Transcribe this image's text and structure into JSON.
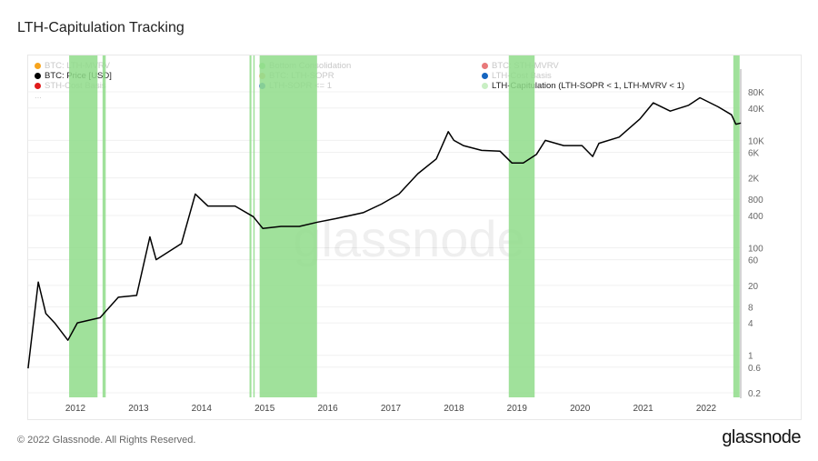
{
  "title": "LTH-Capitulation Tracking",
  "legend": [
    {
      "label": "BTC: LTH-MVRV",
      "color": "#f7a41d",
      "active": false
    },
    {
      "label": "Bottom Consolidation",
      "color": "#a8e6a0",
      "active": false
    },
    {
      "label": "BTC: STH-MVRV",
      "color": "#e8797a",
      "active": false
    },
    {
      "label": "BTC: Price [USD]",
      "color": "#000000",
      "active": true
    },
    {
      "label": "BTC: LTH-SOPR",
      "color": "#f2c38a",
      "active": false
    },
    {
      "label": "LTH-Cost Basis",
      "color": "#1565c0",
      "active": false
    },
    {
      "label": "STH-Cost Basis",
      "color": "#e01b1b",
      "active": false
    },
    {
      "label": "LTH-SOPR <= 1",
      "color": "#4f7de0",
      "active": false
    },
    {
      "label": "LTH-Capitulation (LTH-SOPR < 1, LTH-MVRV < 1)",
      "color": "#c9efc4",
      "active": true
    },
    {
      "label": "...",
      "color": "",
      "active": false
    }
  ],
  "watermark": "glassnode",
  "footer": {
    "copyright": "© 2022 Glassnode. All Rights Reserved.",
    "logo": "glassnode"
  },
  "chart_data": {
    "type": "line",
    "title": "LTH-Capitulation Tracking",
    "yscale": "log",
    "ylim": [
      0.2,
      80000
    ],
    "y_ticks": [
      "80K",
      "40K",
      "10K",
      "6K",
      "2K",
      "800",
      "400",
      "100",
      "60",
      "20",
      "8",
      "4",
      "1",
      "0.6",
      "0.2"
    ],
    "y_tick_values": [
      80000,
      40000,
      10000,
      6000,
      2000,
      800,
      400,
      100,
      60,
      20,
      8,
      4,
      1,
      0.6,
      0.2
    ],
    "x_ticks": [
      "2012",
      "2013",
      "2014",
      "2015",
      "2016",
      "2017",
      "2018",
      "2019",
      "2020",
      "2021",
      "2022"
    ],
    "grid": true,
    "legend_position": "top",
    "series": [
      {
        "name": "BTC: Price [USD]",
        "color": "#000000",
        "points": [
          [
            2011.25,
            0.57
          ],
          [
            2011.41,
            23
          ],
          [
            2011.53,
            6
          ],
          [
            2011.67,
            4
          ],
          [
            2011.88,
            1.9
          ],
          [
            2012.03,
            4
          ],
          [
            2012.39,
            5
          ],
          [
            2012.68,
            12
          ],
          [
            2012.97,
            13
          ],
          [
            2013.18,
            160
          ],
          [
            2013.28,
            60
          ],
          [
            2013.68,
            120
          ],
          [
            2013.9,
            1000
          ],
          [
            2014.1,
            600
          ],
          [
            2014.53,
            600
          ],
          [
            2014.82,
            380
          ],
          [
            2014.97,
            230
          ],
          [
            2015.26,
            250
          ],
          [
            2015.55,
            250
          ],
          [
            2015.84,
            300
          ],
          [
            2016.13,
            350
          ],
          [
            2016.56,
            450
          ],
          [
            2016.85,
            650
          ],
          [
            2017.13,
            1000
          ],
          [
            2017.43,
            2400
          ],
          [
            2017.72,
            4500
          ],
          [
            2017.91,
            14500
          ],
          [
            2018.0,
            10000
          ],
          [
            2018.15,
            8000
          ],
          [
            2018.44,
            6500
          ],
          [
            2018.73,
            6300
          ],
          [
            2018.92,
            3800
          ],
          [
            2019.1,
            3800
          ],
          [
            2019.31,
            5500
          ],
          [
            2019.45,
            10000
          ],
          [
            2019.74,
            8000
          ],
          [
            2020.03,
            8000
          ],
          [
            2020.2,
            5000
          ],
          [
            2020.3,
            8800
          ],
          [
            2020.62,
            11500
          ],
          [
            2020.95,
            25000
          ],
          [
            2021.16,
            50000
          ],
          [
            2021.43,
            35000
          ],
          [
            2021.72,
            45000
          ],
          [
            2021.9,
            62000
          ],
          [
            2022.19,
            42000
          ],
          [
            2022.4,
            30000
          ],
          [
            2022.47,
            20000
          ],
          [
            2022.55,
            21000
          ]
        ]
      }
    ],
    "capitulation_periods": [
      [
        2011.9,
        2012.35
      ],
      [
        2012.43,
        2012.48
      ],
      [
        2014.76,
        2014.79
      ],
      [
        2014.82,
        2014.84
      ],
      [
        2014.92,
        2015.83
      ],
      [
        2018.87,
        2019.28
      ],
      [
        2022.43,
        2022.53
      ]
    ],
    "capitulation_color": "#8fdc8a"
  }
}
